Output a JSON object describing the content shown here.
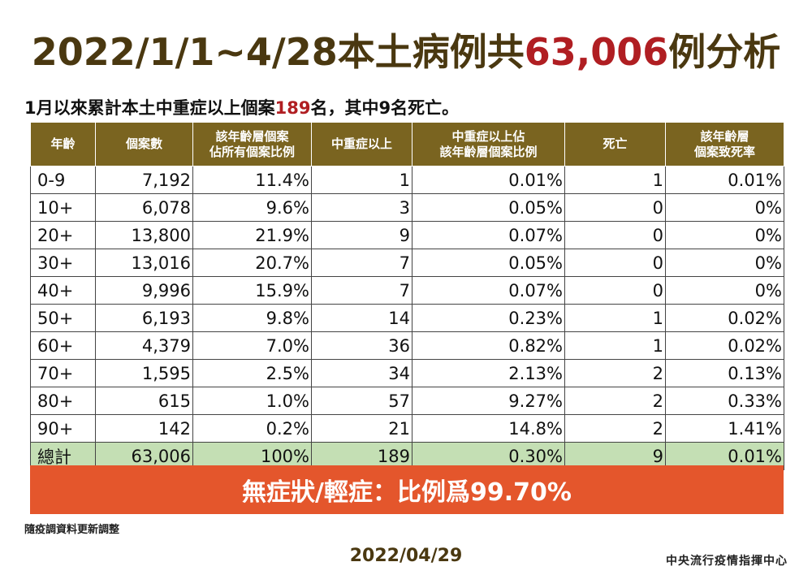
{
  "title": {
    "prefix": "2022/1/1~4/28本土病例共",
    "highlight": "63,006",
    "suffix": "例分析"
  },
  "subtitle": {
    "prefix": "1月以來累計本土中重症以上個案",
    "highlight": "189",
    "suffix": "名，其中9名死亡。"
  },
  "table": {
    "headers": [
      "年齡",
      "個案數",
      "該年齡層個案\n佔所有個案比例",
      "中重症以上",
      "中重症以上佔\n該年齡層個案比例",
      "死亡",
      "該年齡層\n個案致死率"
    ],
    "rows": [
      [
        "0-9",
        "7,192",
        "11.4%",
        "1",
        "0.01%",
        "1",
        "0.01%"
      ],
      [
        "10+",
        "6,078",
        "9.6%",
        "3",
        "0.05%",
        "0",
        "0%"
      ],
      [
        "20+",
        "13,800",
        "21.9%",
        "9",
        "0.07%",
        "0",
        "0%"
      ],
      [
        "30+",
        "13,016",
        "20.7%",
        "7",
        "0.05%",
        "0",
        "0%"
      ],
      [
        "40+",
        "9,996",
        "15.9%",
        "7",
        "0.07%",
        "0",
        "0%"
      ],
      [
        "50+",
        "6,193",
        "9.8%",
        "14",
        "0.23%",
        "1",
        "0.02%"
      ],
      [
        "60+",
        "4,379",
        "7.0%",
        "36",
        "0.82%",
        "1",
        "0.02%"
      ],
      [
        "70+",
        "1,595",
        "2.5%",
        "34",
        "2.13%",
        "2",
        "0.13%"
      ],
      [
        "80+",
        "615",
        "1.0%",
        "57",
        "9.27%",
        "2",
        "0.33%"
      ],
      [
        "90+",
        "142",
        "0.2%",
        "21",
        "14.8%",
        "2",
        "1.41%"
      ]
    ],
    "total": [
      "總計",
      "63,006",
      "100%",
      "189",
      "0.30%",
      "9",
      "0.01%"
    ]
  },
  "banner": "無症狀/輕症：比例爲99.70%",
  "note": "隨疫調資料更新調整",
  "date": "2022/04/29",
  "org": "中央流行疫情指揮中心",
  "colors": {
    "title": "#4a3810",
    "highlight": "#b01e22",
    "header_bg": "#7a6420",
    "total_bg": "#c4dfb4",
    "banner_bg": "#e4562c"
  }
}
